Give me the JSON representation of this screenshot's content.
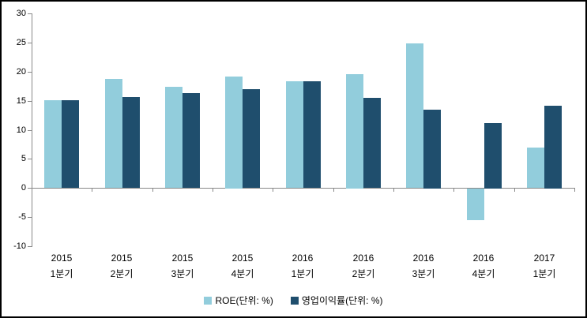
{
  "chart_data": {
    "type": "bar",
    "title": "",
    "xlabel": "",
    "ylabel": "",
    "ylim": [
      -10,
      30
    ],
    "yticks": [
      30,
      25,
      20,
      15,
      10,
      5,
      0,
      -5,
      -10
    ],
    "grid": false,
    "legend_position": "bottom",
    "categories": [
      {
        "line1": "2015",
        "line2": "1분기"
      },
      {
        "line1": "2015",
        "line2": "2분기"
      },
      {
        "line1": "2015",
        "line2": "3분기"
      },
      {
        "line1": "2015",
        "line2": "4분기"
      },
      {
        "line1": "2016",
        "line2": "1분기"
      },
      {
        "line1": "2016",
        "line2": "2분기"
      },
      {
        "line1": "2016",
        "line2": "3분기"
      },
      {
        "line1": "2016",
        "line2": "4분기"
      },
      {
        "line1": "2017",
        "line2": "1분기"
      }
    ],
    "series": [
      {
        "name": "ROE(단위: %)",
        "color": "#92CDDC",
        "values": [
          15.1,
          18.7,
          17.4,
          19.2,
          18.3,
          19.6,
          24.8,
          -5.4,
          6.9
        ]
      },
      {
        "name": "영업이익률(단위: %)",
        "color": "#1F4E6D",
        "values": [
          15.1,
          15.6,
          16.3,
          17.0,
          18.3,
          15.5,
          13.5,
          11.2,
          14.2
        ]
      }
    ],
    "axis_color": "#898989",
    "background_color": "#FFFFFF"
  },
  "legend": {
    "roe_label": "ROE(단위: %)",
    "opm_label": "영업이익률(단위: %)"
  }
}
